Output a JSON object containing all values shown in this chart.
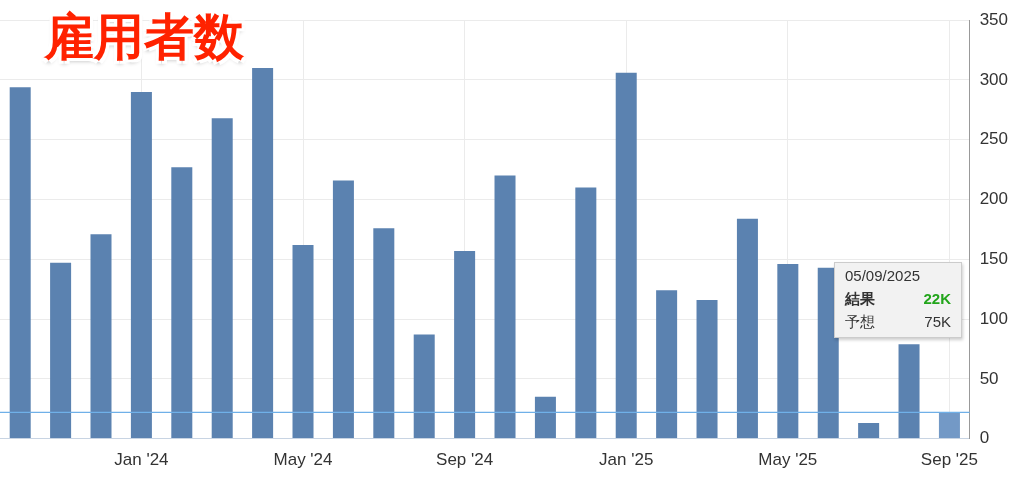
{
  "chart_data": {
    "type": "bar",
    "title": "雇用者数",
    "categories": [
      null,
      null,
      null,
      "Jan '24",
      null,
      null,
      null,
      "May '24",
      null,
      null,
      null,
      "Sep '24",
      null,
      null,
      null,
      "Jan '25",
      null,
      null,
      null,
      "May '25",
      null,
      null,
      null,
      "Sep '25"
    ],
    "values": [
      294,
      147,
      171,
      290,
      227,
      268,
      310,
      162,
      216,
      176,
      87,
      157,
      220,
      35,
      210,
      306,
      124,
      116,
      184,
      146,
      143,
      13,
      79,
      22
    ],
    "colors": [
      "#5b82b0",
      "#5b82b0",
      "#5b82b0",
      "#5b82b0",
      "#5b82b0",
      "#5b82b0",
      "#5b82b0",
      "#5b82b0",
      "#5b82b0",
      "#5b82b0",
      "#5b82b0",
      "#5b82b0",
      "#5b82b0",
      "#5b82b0",
      "#5b82b0",
      "#5b82b0",
      "#5b82b0",
      "#5b82b0",
      "#5b82b0",
      "#5b82b0",
      "#5b82b0",
      "#5b82b0",
      "#5b82b0",
      "#7399c6"
    ],
    "ylim": [
      0,
      350
    ],
    "yticks": [
      0,
      50,
      100,
      150,
      200,
      250,
      300,
      350
    ],
    "grid": true,
    "legend": false,
    "ref_lines": [
      {
        "axis": "y",
        "value": 22,
        "color": "#6fb0e8"
      }
    ],
    "annotations": [
      "05/09/2025",
      "結果",
      "22K",
      "予想",
      "75K"
    ]
  }
}
